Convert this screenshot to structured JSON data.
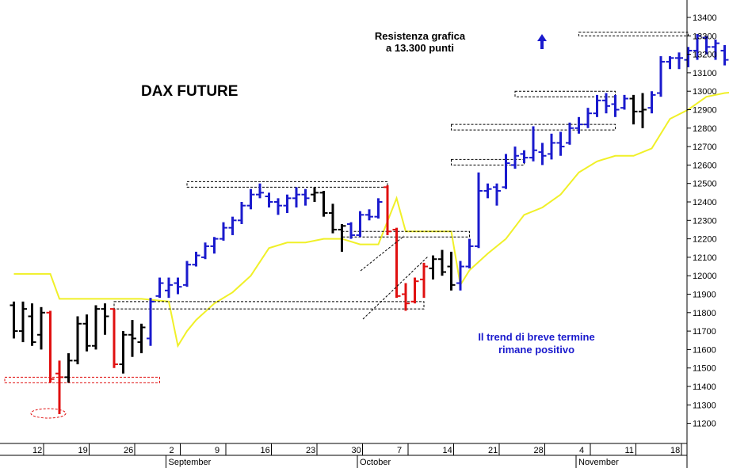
{
  "chart_data": {
    "type": "ohlc",
    "title": "DAX FUTURE",
    "annotations": [
      {
        "id": "resistance",
        "lines": [
          "Resistenza grafica",
          "a 13.300 punti"
        ]
      },
      {
        "id": "trend",
        "lines": [
          "Il trend di breve termine",
          "rimane positivo"
        ]
      }
    ],
    "ylim": [
      11170,
      13440
    ],
    "y_ticks": [
      11200,
      11300,
      11400,
      11500,
      11600,
      11700,
      11800,
      11900,
      12000,
      12100,
      12200,
      12300,
      12400,
      12500,
      12600,
      12700,
      12800,
      12900,
      13000,
      13100,
      13200,
      13300,
      13400
    ],
    "x_ticks": [
      {
        "label": "12",
        "day": 1
      },
      {
        "label": "19",
        "day": 6
      },
      {
        "label": "26",
        "day": 11
      },
      {
        "label": "2",
        "day": 16
      },
      {
        "label": "9",
        "day": 21
      },
      {
        "label": "16",
        "day": 26
      },
      {
        "label": "23",
        "day": 31
      },
      {
        "label": "30",
        "day": 36
      },
      {
        "label": "7",
        "day": 41
      },
      {
        "label": "14",
        "day": 46
      },
      {
        "label": "21",
        "day": 51
      },
      {
        "label": "28",
        "day": 56
      },
      {
        "label": "4",
        "day": 61
      },
      {
        "label": "11",
        "day": 66
      },
      {
        "label": "18",
        "day": 71
      }
    ],
    "month_labels": [
      {
        "label": "September",
        "day": 16
      },
      {
        "label": "October",
        "day": 37
      },
      {
        "label": "November",
        "day": 61
      }
    ],
    "colors": {
      "up": "#1a1acd",
      "down": "#e01010",
      "neutral": "#000000",
      "average": "#f0f028"
    },
    "bars": [
      {
        "o": 11840,
        "h": 11860,
        "l": 11660,
        "c": 11700,
        "t": "neutral"
      },
      {
        "o": 11700,
        "h": 11860,
        "l": 11640,
        "c": 11820,
        "t": "neutral"
      },
      {
        "o": 11780,
        "h": 11850,
        "l": 11620,
        "c": 11640,
        "t": "neutral"
      },
      {
        "o": 11680,
        "h": 11830,
        "l": 11600,
        "c": 11800,
        "t": "neutral"
      },
      {
        "o": 11800,
        "h": 11810,
        "l": 11420,
        "c": 11440,
        "t": "down"
      },
      {
        "o": 11470,
        "h": 11540,
        "l": 11250,
        "c": 11450,
        "t": "down"
      },
      {
        "o": 11450,
        "h": 11580,
        "l": 11420,
        "c": 11540,
        "t": "neutral"
      },
      {
        "o": 11540,
        "h": 11780,
        "l": 11520,
        "c": 11740,
        "t": "neutral"
      },
      {
        "o": 11740,
        "h": 11790,
        "l": 11590,
        "c": 11620,
        "t": "neutral"
      },
      {
        "o": 11620,
        "h": 11840,
        "l": 11600,
        "c": 11820,
        "t": "neutral"
      },
      {
        "o": 11820,
        "h": 11850,
        "l": 11680,
        "c": 11780,
        "t": "neutral"
      },
      {
        "o": 11820,
        "h": 11820,
        "l": 11500,
        "c": 11520,
        "t": "down"
      },
      {
        "o": 11520,
        "h": 11700,
        "l": 11470,
        "c": 11680,
        "t": "neutral"
      },
      {
        "o": 11680,
        "h": 11760,
        "l": 11560,
        "c": 11660,
        "t": "neutral"
      },
      {
        "o": 11640,
        "h": 11740,
        "l": 11580,
        "c": 11720,
        "t": "neutral"
      },
      {
        "o": 11660,
        "h": 11880,
        "l": 11620,
        "c": 11860,
        "t": "up"
      },
      {
        "o": 11890,
        "h": 11990,
        "l": 11880,
        "c": 11960,
        "t": "up"
      },
      {
        "o": 11920,
        "h": 11990,
        "l": 11880,
        "c": 11950,
        "t": "up"
      },
      {
        "o": 11960,
        "h": 11990,
        "l": 11900,
        "c": 11940,
        "t": "up"
      },
      {
        "o": 11950,
        "h": 12080,
        "l": 11940,
        "c": 12060,
        "t": "up"
      },
      {
        "o": 12060,
        "h": 12130,
        "l": 12050,
        "c": 12110,
        "t": "up"
      },
      {
        "o": 12100,
        "h": 12180,
        "l": 12090,
        "c": 12160,
        "t": "up"
      },
      {
        "o": 12160,
        "h": 12210,
        "l": 12120,
        "c": 12200,
        "t": "up"
      },
      {
        "o": 12200,
        "h": 12290,
        "l": 12190,
        "c": 12260,
        "t": "up"
      },
      {
        "o": 12260,
        "h": 12320,
        "l": 12220,
        "c": 12300,
        "t": "up"
      },
      {
        "o": 12300,
        "h": 12400,
        "l": 12280,
        "c": 12380,
        "t": "up"
      },
      {
        "o": 12380,
        "h": 12470,
        "l": 12360,
        "c": 12440,
        "t": "up"
      },
      {
        "o": 12440,
        "h": 12500,
        "l": 12420,
        "c": 12450,
        "t": "up"
      },
      {
        "o": 12430,
        "h": 12450,
        "l": 12370,
        "c": 12400,
        "t": "up"
      },
      {
        "o": 12400,
        "h": 12420,
        "l": 12330,
        "c": 12380,
        "t": "up"
      },
      {
        "o": 12380,
        "h": 12440,
        "l": 12340,
        "c": 12420,
        "t": "up"
      },
      {
        "o": 12420,
        "h": 12480,
        "l": 12370,
        "c": 12440,
        "t": "up"
      },
      {
        "o": 12440,
        "h": 12470,
        "l": 12380,
        "c": 12420,
        "t": "up"
      },
      {
        "o": 12440,
        "h": 12480,
        "l": 12400,
        "c": 12450,
        "t": "neutral"
      },
      {
        "o": 12450,
        "h": 12460,
        "l": 12320,
        "c": 12340,
        "t": "neutral"
      },
      {
        "o": 12340,
        "h": 12390,
        "l": 12230,
        "c": 12250,
        "t": "neutral"
      },
      {
        "o": 12250,
        "h": 12280,
        "l": 12130,
        "c": 12270,
        "t": "neutral"
      },
      {
        "o": 12280,
        "h": 12290,
        "l": 12200,
        "c": 12220,
        "t": "up"
      },
      {
        "o": 12220,
        "h": 12350,
        "l": 12210,
        "c": 12330,
        "t": "up"
      },
      {
        "o": 12330,
        "h": 12360,
        "l": 12300,
        "c": 12320,
        "t": "up"
      },
      {
        "o": 12320,
        "h": 12420,
        "l": 12310,
        "c": 12400,
        "t": "up"
      },
      {
        "o": 12480,
        "h": 12490,
        "l": 12220,
        "c": 12240,
        "t": "down"
      },
      {
        "o": 12250,
        "h": 12260,
        "l": 11880,
        "c": 11890,
        "t": "down"
      },
      {
        "o": 11900,
        "h": 11960,
        "l": 11810,
        "c": 11850,
        "t": "down"
      },
      {
        "o": 11860,
        "h": 11990,
        "l": 11850,
        "c": 11970,
        "t": "down"
      },
      {
        "o": 11980,
        "h": 12070,
        "l": 11880,
        "c": 12050,
        "t": "down"
      },
      {
        "o": 12040,
        "h": 12110,
        "l": 11980,
        "c": 12090,
        "t": "neutral"
      },
      {
        "o": 12090,
        "h": 12140,
        "l": 12000,
        "c": 12020,
        "t": "neutral"
      },
      {
        "o": 12050,
        "h": 12130,
        "l": 11920,
        "c": 11950,
        "t": "neutral"
      },
      {
        "o": 11960,
        "h": 12080,
        "l": 11920,
        "c": 12050,
        "t": "up"
      },
      {
        "o": 12050,
        "h": 12200,
        "l": 12040,
        "c": 12160,
        "t": "up"
      },
      {
        "o": 12160,
        "h": 12560,
        "l": 12150,
        "c": 12460,
        "t": "up"
      },
      {
        "o": 12460,
        "h": 12500,
        "l": 12420,
        "c": 12470,
        "t": "up"
      },
      {
        "o": 12480,
        "h": 12500,
        "l": 12380,
        "c": 12460,
        "t": "up"
      },
      {
        "o": 12480,
        "h": 12660,
        "l": 12470,
        "c": 12610,
        "t": "up"
      },
      {
        "o": 12600,
        "h": 12700,
        "l": 12580,
        "c": 12650,
        "t": "up"
      },
      {
        "o": 12660,
        "h": 12680,
        "l": 12610,
        "c": 12640,
        "t": "up"
      },
      {
        "o": 12640,
        "h": 12810,
        "l": 12620,
        "c": 12680,
        "t": "up"
      },
      {
        "o": 12670,
        "h": 12720,
        "l": 12600,
        "c": 12650,
        "t": "up"
      },
      {
        "o": 12660,
        "h": 12770,
        "l": 12630,
        "c": 12720,
        "t": "up"
      },
      {
        "o": 12720,
        "h": 12780,
        "l": 12650,
        "c": 12700,
        "t": "up"
      },
      {
        "o": 12720,
        "h": 12830,
        "l": 12710,
        "c": 12800,
        "t": "up"
      },
      {
        "o": 12800,
        "h": 12860,
        "l": 12770,
        "c": 12820,
        "t": "up"
      },
      {
        "o": 12820,
        "h": 12910,
        "l": 12800,
        "c": 12880,
        "t": "up"
      },
      {
        "o": 12880,
        "h": 12980,
        "l": 12860,
        "c": 12950,
        "t": "up"
      },
      {
        "o": 12950,
        "h": 12990,
        "l": 12880,
        "c": 12920,
        "t": "up"
      },
      {
        "o": 12930,
        "h": 12980,
        "l": 12860,
        "c": 12900,
        "t": "up"
      },
      {
        "o": 12910,
        "h": 12980,
        "l": 12900,
        "c": 12960,
        "t": "up"
      },
      {
        "o": 12960,
        "h": 12980,
        "l": 12820,
        "c": 12890,
        "t": "neutral"
      },
      {
        "o": 12890,
        "h": 12990,
        "l": 12800,
        "c": 12900,
        "t": "neutral"
      },
      {
        "o": 12910,
        "h": 13000,
        "l": 12880,
        "c": 12980,
        "t": "up"
      },
      {
        "o": 12990,
        "h": 13190,
        "l": 12970,
        "c": 13160,
        "t": "up"
      },
      {
        "o": 13160,
        "h": 13190,
        "l": 13120,
        "c": 13180,
        "t": "up"
      },
      {
        "o": 13180,
        "h": 13210,
        "l": 13120,
        "c": 13180,
        "t": "up"
      },
      {
        "o": 13170,
        "h": 13240,
        "l": 13130,
        "c": 13220,
        "t": "up"
      },
      {
        "o": 13220,
        "h": 13310,
        "l": 13170,
        "c": 13300,
        "t": "up"
      },
      {
        "o": 13290,
        "h": 13300,
        "l": 13200,
        "c": 13240,
        "t": "up"
      },
      {
        "o": 13240,
        "h": 13280,
        "l": 13170,
        "c": 13260,
        "t": "up"
      },
      {
        "o": 13220,
        "h": 13250,
        "l": 13140,
        "c": 13170,
        "t": "up"
      },
      {
        "o": 13200,
        "h": 13310,
        "l": 13190,
        "c": 13240,
        "t": "up"
      },
      {
        "o": 13250,
        "h": 13270,
        "l": 13140,
        "c": 13240,
        "t": "neutral"
      }
    ],
    "average_line": [
      [
        0,
        12010
      ],
      [
        4,
        12010
      ],
      [
        5,
        11875
      ],
      [
        14,
        11875
      ],
      [
        15,
        11870
      ],
      [
        17,
        11860
      ],
      [
        18,
        11620
      ],
      [
        19,
        11700
      ],
      [
        20,
        11760
      ],
      [
        22,
        11850
      ],
      [
        24,
        11910
      ],
      [
        26,
        12000
      ],
      [
        28,
        12150
      ],
      [
        30,
        12180
      ],
      [
        32,
        12180
      ],
      [
        34,
        12200
      ],
      [
        36,
        12200
      ],
      [
        38,
        12170
      ],
      [
        40,
        12170
      ],
      [
        42,
        12420
      ],
      [
        43,
        12240
      ],
      [
        48,
        12240
      ],
      [
        49,
        11950
      ],
      [
        50,
        12030
      ],
      [
        52,
        12120
      ],
      [
        54,
        12200
      ],
      [
        56,
        12330
      ],
      [
        58,
        12370
      ],
      [
        60,
        12440
      ],
      [
        62,
        12560
      ],
      [
        64,
        12620
      ],
      [
        66,
        12650
      ],
      [
        68,
        12650
      ],
      [
        70,
        12690
      ],
      [
        72,
        12850
      ],
      [
        74,
        12900
      ],
      [
        76,
        12970
      ],
      [
        78,
        12990
      ],
      [
        80,
        13000
      ]
    ],
    "support_boxes": [
      {
        "d0": -1,
        "d1": 16,
        "v0": 11420,
        "v1": 11450
      },
      {
        "d0": 11,
        "d1": 45,
        "v0": 11820,
        "v1": 11860
      },
      {
        "d0": 19,
        "d1": 41,
        "v0": 12480,
        "v1": 12510
      },
      {
        "d0": 36,
        "d1": 50,
        "v0": 12210,
        "v1": 12240
      },
      {
        "d0": 48,
        "d1": 56,
        "v0": 12600,
        "v1": 12630
      },
      {
        "d0": 48,
        "d1": 66,
        "v0": 12790,
        "v1": 12820
      },
      {
        "d0": 55,
        "d1": 66,
        "v0": 12970,
        "v1": 13000
      },
      {
        "d0": 62,
        "d1": 74,
        "v0": 13300,
        "v1": 13320
      }
    ]
  },
  "axis": {
    "tick_labels": [
      "11200",
      "11300",
      "11400",
      "11500",
      "11600",
      "11700",
      "11800",
      "11900",
      "12000",
      "12100",
      "12200",
      "12300",
      "12400",
      "12500",
      "12600",
      "12700",
      "12800",
      "12900",
      "13000",
      "13100",
      "13200",
      "13300",
      "13400"
    ],
    "x_labels": [
      "12",
      "19",
      "26",
      "2",
      "9",
      "16",
      "23",
      "30",
      "7",
      "14",
      "21",
      "28",
      "4",
      "11",
      "18"
    ],
    "month_labels": [
      "September",
      "October",
      "November"
    ]
  },
  "title": "DAX FUTURE",
  "resistance_line1": "Resistenza grafica",
  "resistance_line2": "a 13.300 punti",
  "trend_line1": "Il trend di breve termine",
  "trend_line2": "rimane positivo"
}
